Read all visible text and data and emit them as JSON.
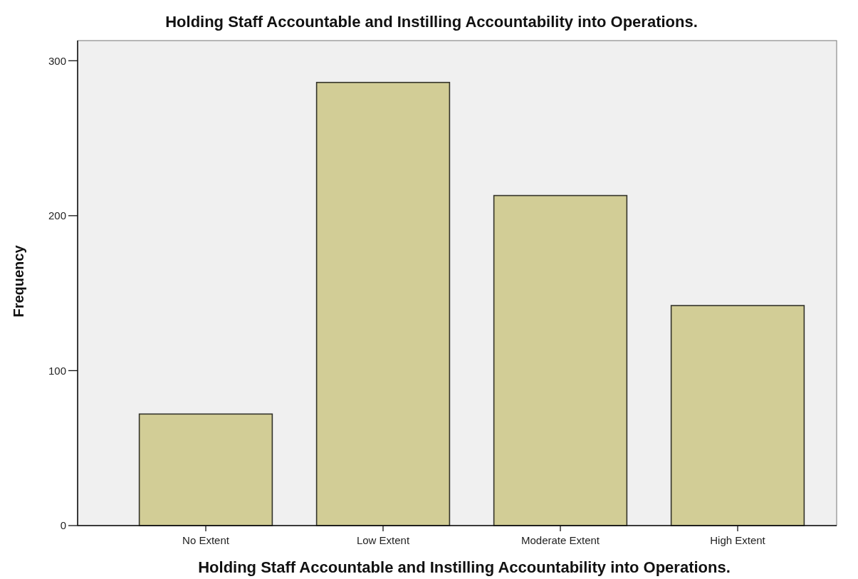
{
  "chart_data": {
    "type": "bar",
    "title": "Holding Staff Accountable and Instilling Accountability into Operations.",
    "xlabel": "Holding Staff Accountable and Instilling Accountability into Operations.",
    "ylabel": "Frequency",
    "categories": [
      "No Extent",
      "Low Extent",
      "Moderate Extent",
      "High Extent"
    ],
    "values": [
      72,
      286,
      213,
      142
    ],
    "color": "#d2cd96",
    "ylim": [
      0,
      313
    ],
    "yticks": [
      0,
      100,
      200,
      300
    ]
  }
}
